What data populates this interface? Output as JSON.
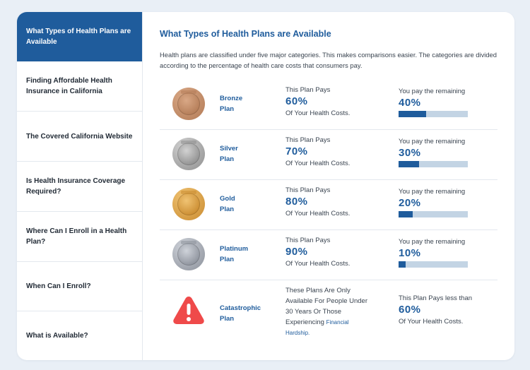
{
  "sidebar": {
    "items": [
      {
        "label": "What Types of Health Plans are Available"
      },
      {
        "label": "Finding Affordable Health Insurance in California"
      },
      {
        "label": "The Covered California Website"
      },
      {
        "label": "Is Health Insurance Coverage Required?"
      },
      {
        "label": "Where Can I Enroll in a Health Plan?"
      },
      {
        "label": "When Can I Enroll?"
      },
      {
        "label": "What is Available?"
      }
    ]
  },
  "main": {
    "title": "What Types of Health Plans are Available",
    "intro": "Health plans are classified under five major categories. This makes comparisons easier. The categories are divided according to the percentage of health care costs that consumers pay."
  },
  "plans": [
    {
      "name_line1": "Bronze",
      "name_line2": "Plan",
      "pays_label": "This Plan Pays",
      "pays_pct": "60%",
      "pays_sub": "Of Your Health Costs.",
      "remain_label": "You pay the remaining",
      "remain_pct": "40%",
      "remain_fraction": 0.4,
      "medal_color": "#b27a55",
      "medal_light": "#d9a886"
    },
    {
      "name_line1": "Silver",
      "name_line2": "Plan",
      "pays_label": "This Plan Pays",
      "pays_pct": "70%",
      "pays_sub": "Of Your Health Costs.",
      "remain_label": "You pay the remaining",
      "remain_pct": "30%",
      "remain_fraction": 0.3,
      "medal_color": "#8d8d8d",
      "medal_light": "#d2d2d2"
    },
    {
      "name_line1": "Gold",
      "name_line2": "Plan",
      "pays_label": "This Plan Pays",
      "pays_pct": "80%",
      "pays_sub": "Of Your Health Costs.",
      "remain_label": "You pay the remaining",
      "remain_pct": "20%",
      "remain_fraction": 0.2,
      "medal_color": "#c98a2e",
      "medal_light": "#f0c373"
    },
    {
      "name_line1": "Platinum",
      "name_line2": "Plan",
      "pays_label": "This Plan Pays",
      "pays_pct": "90%",
      "pays_sub": "Of Your Health Costs.",
      "remain_label": "You pay the remaining",
      "remain_pct": "10%",
      "remain_fraction": 0.1,
      "medal_color": "#8a8f99",
      "medal_light": "#cfd3da"
    }
  ],
  "catastrophic": {
    "name_line1": "Catastrophic",
    "name_line2": "Plan",
    "text_line1": "These Plans Are Only",
    "text_line2": "Available For People Under",
    "text_line3": "30 Years Or Those",
    "text_line4": "Experiencing",
    "link_line1": "Financial",
    "link_line2": "Hardship.",
    "pays_label": "This Plan Pays less than",
    "pays_pct": "60%",
    "pays_sub": "Of Your Health Costs.",
    "icon": "warning-icon",
    "icon_color": "#ef4a4a"
  },
  "colors": {
    "accent": "#1f5c9c",
    "bar_track": "#c3d4e4"
  }
}
